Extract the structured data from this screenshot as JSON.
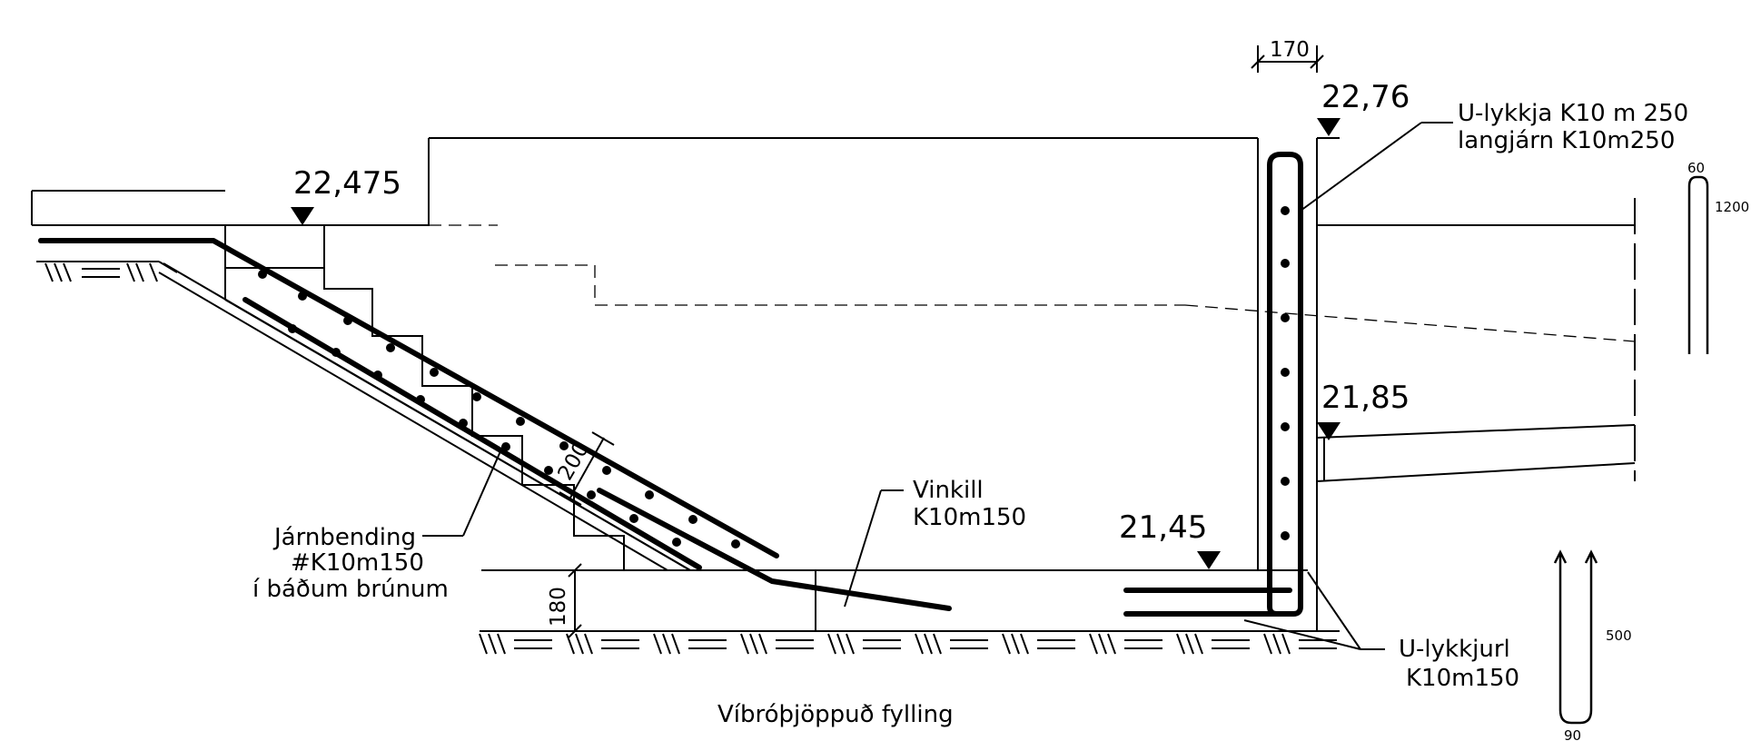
{
  "elevations": {
    "left_step": "22,475",
    "wall_top": "22,76",
    "right_mid": "21,85",
    "floor": "21,45"
  },
  "dimensions": {
    "wall_thickness": "170",
    "slab_depth": "200",
    "floor_thickness": "180"
  },
  "labels": {
    "u_loop_line1": "U-lykkja K10 m 250",
    "u_loop_line2": "langjárn K10m250",
    "rebar_line1": "Járnbending",
    "rebar_line2": "#K10m150",
    "rebar_line3": "í báðum brúnum",
    "angle_line1": "Vinkill",
    "angle_line2": "K10m150",
    "u_rod_line1": "U-lykkjurl",
    "u_rod_line2": "K10m150",
    "fill_note": "Víbróþjöppuð fylling"
  },
  "bar_details": {
    "top_width": "60",
    "top_length": "1200",
    "bottom_length": "500",
    "bottom_width": "90"
  }
}
